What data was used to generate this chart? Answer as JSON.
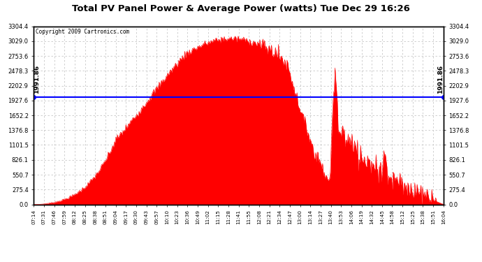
{
  "title": "Total PV Panel Power & Average Power (watts) Tue Dec 29 16:26",
  "copyright": "Copyright 2009 Cartronics.com",
  "average_power": 1991.86,
  "fill_color": "#FF0000",
  "avg_line_color": "#0000FF",
  "background_color": "#FFFFFF",
  "grid_color": "#C8C8C8",
  "ymax": 3304.4,
  "ymin": 0.0,
  "ytick_labels": [
    "0.0",
    "275.4",
    "550.7",
    "826.1",
    "1101.5",
    "1376.8",
    "1652.2",
    "1927.6",
    "2202.9",
    "2478.3",
    "2753.6",
    "3029.0",
    "3304.4"
  ],
  "ytick_values": [
    0.0,
    275.4,
    550.7,
    826.1,
    1101.5,
    1376.8,
    1652.2,
    1927.6,
    2202.9,
    2478.3,
    2753.6,
    3029.0,
    3304.4
  ],
  "xtick_labels": [
    "07:14",
    "07:31",
    "07:46",
    "07:59",
    "08:12",
    "08:25",
    "08:38",
    "08:51",
    "09:04",
    "09:17",
    "09:30",
    "09:43",
    "09:57",
    "10:10",
    "10:23",
    "10:36",
    "10:49",
    "11:02",
    "11:15",
    "11:28",
    "11:41",
    "11:55",
    "12:08",
    "12:21",
    "12:34",
    "12:47",
    "13:00",
    "13:14",
    "13:27",
    "13:40",
    "13:53",
    "14:06",
    "14:19",
    "14:32",
    "14:45",
    "14:58",
    "15:12",
    "15:25",
    "15:38",
    "15:51",
    "16:04"
  ],
  "avg_label": "1991.86",
  "peak_power": 3304.4,
  "avg_value": 1991.86
}
